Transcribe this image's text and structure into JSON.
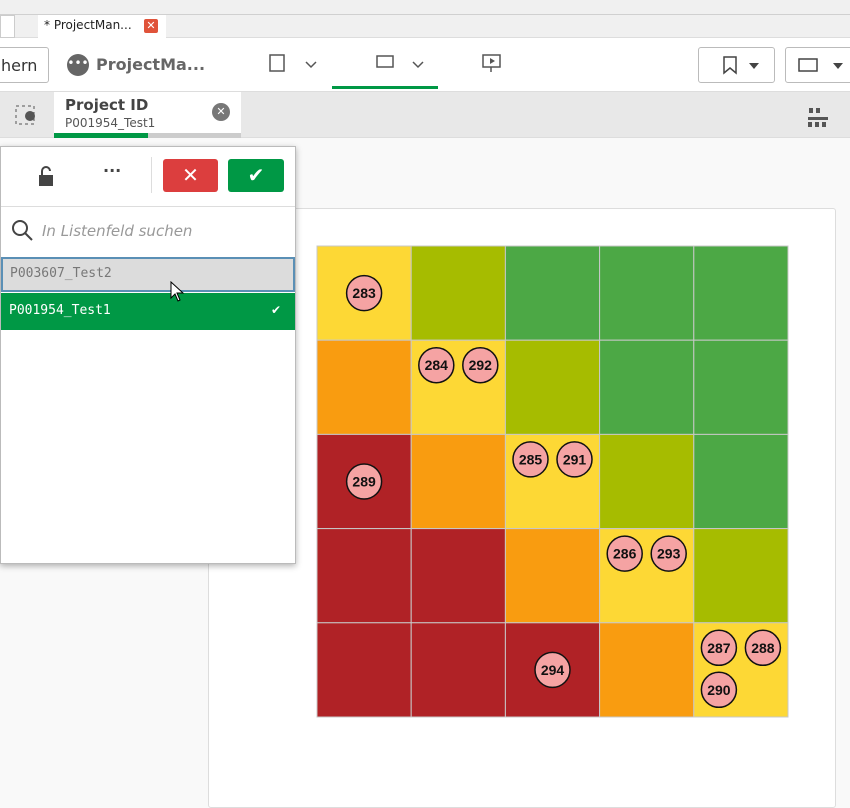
{
  "browser_tab": {
    "title": "* ProjectMan..."
  },
  "toolbar": {
    "save_button": "hern",
    "app_name": "ProjectMa..."
  },
  "selection": {
    "field": "Project ID",
    "value": "P001954_Test1"
  },
  "listbox": {
    "search_placeholder": "In Listenfeld suchen",
    "items": [
      "P003607_Test2",
      "P001954_Test1"
    ]
  },
  "matrix": {
    "colors": [
      [
        "#fdd835",
        "#a6bc00",
        "#4ca845",
        "#4ca845",
        "#4ca845"
      ],
      [
        "#f99c10",
        "#fdd835",
        "#a6bc00",
        "#4ca845",
        "#4ca845"
      ],
      [
        "#b02226",
        "#f99c10",
        "#fdd835",
        "#a6bc00",
        "#4ca845"
      ],
      [
        "#b02226",
        "#b02226",
        "#f99c10",
        "#fdd835",
        "#a6bc00"
      ],
      [
        "#b02226",
        "#b02226",
        "#b02226",
        "#f99c10",
        "#fdd835"
      ]
    ],
    "labels": [
      [
        [
          283
        ],
        [],
        [],
        [],
        []
      ],
      [
        [],
        [
          284,
          292
        ],
        [],
        [],
        []
      ],
      [
        [
          289
        ],
        [],
        [
          285,
          291
        ],
        [],
        []
      ],
      [
        [],
        [],
        [],
        [
          286,
          293
        ],
        []
      ],
      [
        [],
        [],
        [
          294
        ],
        [],
        [
          287,
          288,
          290
        ]
      ]
    ]
  }
}
